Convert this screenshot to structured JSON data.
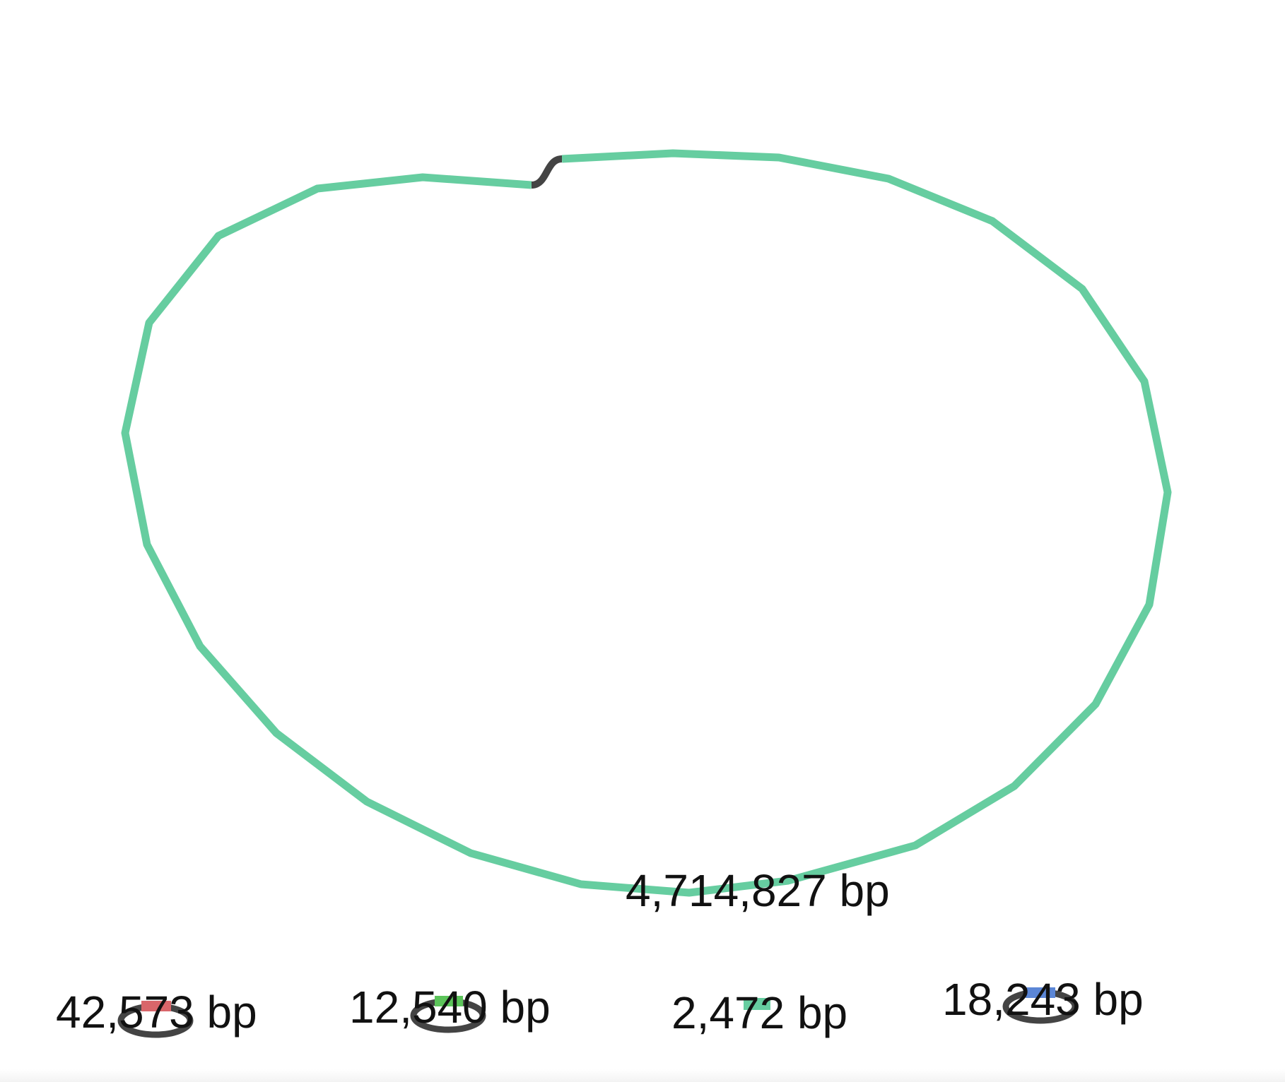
{
  "graph": {
    "chromosome": {
      "length_label": "4,714,827 bp",
      "color": "#66CDA0",
      "link_color": "#444444"
    },
    "plasmids": [
      {
        "length_label": "42,573 bp",
        "segment_color": "#D9666A",
        "loop_color": "#444444",
        "circular": true
      },
      {
        "length_label": "12,540 bp",
        "segment_color": "#5CC45A",
        "loop_color": "#444444",
        "circular": true
      },
      {
        "length_label": "2,472 bp",
        "segment_color": "#66CDA0",
        "circular": false
      },
      {
        "length_label": "18,243 bp",
        "segment_color": "#5B86D6",
        "loop_color": "#444444",
        "circular": true
      }
    ]
  }
}
